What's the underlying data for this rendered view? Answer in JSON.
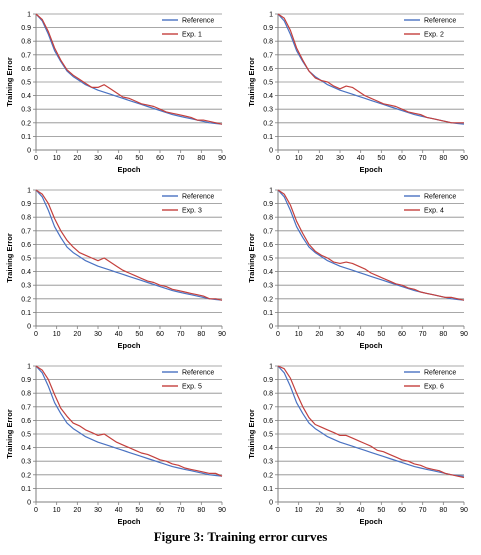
{
  "caption": "Figure 3: Training error curves",
  "colors": {
    "reference": "#4a72c2",
    "experiment": "#c4403d",
    "grid": "#8c8c8c",
    "axis": "#7f7f7f"
  },
  "chart_data": [
    {
      "type": "line",
      "panel": "top-left",
      "xlabel": "Epoch",
      "ylabel": "Training Error",
      "xlim": [
        0,
        90
      ],
      "ylim": [
        0,
        1
      ],
      "xticks": [
        0,
        10,
        20,
        30,
        40,
        50,
        60,
        70,
        80,
        90
      ],
      "yticks": [
        0,
        0.1,
        0.2,
        0.3,
        0.4,
        0.5,
        0.6,
        0.7,
        0.8,
        0.9,
        1
      ],
      "grid": true,
      "legend": "top-right",
      "x": [
        0,
        3,
        6,
        9,
        12,
        15,
        18,
        21,
        24,
        27,
        30,
        33,
        36,
        39,
        42,
        45,
        48,
        51,
        54,
        57,
        60,
        63,
        66,
        69,
        72,
        75,
        78,
        81,
        84,
        87,
        90
      ],
      "series": [
        {
          "name": "Reference",
          "values": [
            1.0,
            0.95,
            0.85,
            0.73,
            0.65,
            0.58,
            0.54,
            0.51,
            0.48,
            0.46,
            0.44,
            0.425,
            0.41,
            0.395,
            0.38,
            0.365,
            0.35,
            0.335,
            0.32,
            0.305,
            0.29,
            0.275,
            0.26,
            0.25,
            0.24,
            0.23,
            0.22,
            0.21,
            0.2,
            0.195,
            0.19
          ]
        },
        {
          "name": "Exp. 1",
          "values": [
            1.0,
            0.96,
            0.87,
            0.75,
            0.66,
            0.59,
            0.55,
            0.52,
            0.49,
            0.46,
            0.46,
            0.48,
            0.45,
            0.42,
            0.39,
            0.38,
            0.36,
            0.34,
            0.33,
            0.32,
            0.3,
            0.28,
            0.27,
            0.26,
            0.25,
            0.24,
            0.22,
            0.22,
            0.21,
            0.2,
            0.19
          ]
        }
      ]
    },
    {
      "type": "line",
      "panel": "top-right",
      "xlabel": "Epoch",
      "ylabel": "Training Error",
      "xlim": [
        0,
        90
      ],
      "ylim": [
        0,
        1
      ],
      "xticks": [
        0,
        10,
        20,
        30,
        40,
        50,
        60,
        70,
        80,
        90
      ],
      "yticks": [
        0,
        0.1,
        0.2,
        0.3,
        0.4,
        0.5,
        0.6,
        0.7,
        0.8,
        0.9,
        1
      ],
      "grid": true,
      "legend": "top-right",
      "x": [
        0,
        3,
        6,
        9,
        12,
        15,
        18,
        21,
        24,
        27,
        30,
        33,
        36,
        39,
        42,
        45,
        48,
        51,
        54,
        57,
        60,
        63,
        66,
        69,
        72,
        75,
        78,
        81,
        84,
        87,
        90
      ],
      "series": [
        {
          "name": "Reference",
          "values": [
            1.0,
            0.95,
            0.85,
            0.73,
            0.65,
            0.58,
            0.54,
            0.51,
            0.48,
            0.46,
            0.44,
            0.425,
            0.41,
            0.395,
            0.38,
            0.365,
            0.35,
            0.335,
            0.32,
            0.305,
            0.29,
            0.275,
            0.26,
            0.25,
            0.24,
            0.23,
            0.22,
            0.21,
            0.2,
            0.195,
            0.19
          ]
        },
        {
          "name": "Exp. 2",
          "values": [
            1.0,
            0.97,
            0.88,
            0.75,
            0.66,
            0.58,
            0.53,
            0.51,
            0.5,
            0.47,
            0.45,
            0.47,
            0.46,
            0.43,
            0.4,
            0.38,
            0.36,
            0.34,
            0.33,
            0.32,
            0.3,
            0.28,
            0.27,
            0.26,
            0.24,
            0.23,
            0.22,
            0.21,
            0.2,
            0.2,
            0.2
          ]
        }
      ]
    },
    {
      "type": "line",
      "panel": "middle-left",
      "xlabel": "Epoch",
      "ylabel": "Training Error",
      "xlim": [
        0,
        90
      ],
      "ylim": [
        0,
        1
      ],
      "xticks": [
        0,
        10,
        20,
        30,
        40,
        50,
        60,
        70,
        80,
        90
      ],
      "yticks": [
        0,
        0.1,
        0.2,
        0.3,
        0.4,
        0.5,
        0.6,
        0.7,
        0.8,
        0.9,
        1
      ],
      "grid": true,
      "legend": "top-right",
      "x": [
        0,
        3,
        6,
        9,
        12,
        15,
        18,
        21,
        24,
        27,
        30,
        33,
        36,
        39,
        42,
        45,
        48,
        51,
        54,
        57,
        60,
        63,
        66,
        69,
        72,
        75,
        78,
        81,
        84,
        87,
        90
      ],
      "series": [
        {
          "name": "Reference",
          "values": [
            1.0,
            0.95,
            0.85,
            0.73,
            0.65,
            0.58,
            0.54,
            0.51,
            0.48,
            0.46,
            0.44,
            0.425,
            0.41,
            0.395,
            0.38,
            0.365,
            0.35,
            0.335,
            0.32,
            0.305,
            0.29,
            0.275,
            0.26,
            0.25,
            0.24,
            0.23,
            0.22,
            0.21,
            0.2,
            0.195,
            0.19
          ]
        },
        {
          "name": "Exp. 3",
          "values": [
            1.0,
            0.97,
            0.9,
            0.79,
            0.7,
            0.63,
            0.58,
            0.54,
            0.52,
            0.5,
            0.48,
            0.5,
            0.47,
            0.44,
            0.41,
            0.39,
            0.37,
            0.35,
            0.33,
            0.32,
            0.3,
            0.29,
            0.27,
            0.26,
            0.25,
            0.24,
            0.23,
            0.22,
            0.2,
            0.2,
            0.19
          ]
        }
      ]
    },
    {
      "type": "line",
      "panel": "middle-right",
      "xlabel": "Epoch",
      "ylabel": "Training Error",
      "xlim": [
        0,
        90
      ],
      "ylim": [
        0,
        1
      ],
      "xticks": [
        0,
        10,
        20,
        30,
        40,
        50,
        60,
        70,
        80,
        90
      ],
      "yticks": [
        0,
        0.1,
        0.2,
        0.3,
        0.4,
        0.5,
        0.6,
        0.7,
        0.8,
        0.9,
        1
      ],
      "grid": true,
      "legend": "top-right",
      "x": [
        0,
        3,
        6,
        9,
        12,
        15,
        18,
        21,
        24,
        27,
        30,
        33,
        36,
        39,
        42,
        45,
        48,
        51,
        54,
        57,
        60,
        63,
        66,
        69,
        72,
        75,
        78,
        81,
        84,
        87,
        90
      ],
      "series": [
        {
          "name": "Reference",
          "values": [
            1.0,
            0.95,
            0.85,
            0.73,
            0.65,
            0.58,
            0.54,
            0.51,
            0.48,
            0.46,
            0.44,
            0.425,
            0.41,
            0.395,
            0.38,
            0.365,
            0.35,
            0.335,
            0.32,
            0.305,
            0.29,
            0.275,
            0.26,
            0.25,
            0.24,
            0.23,
            0.22,
            0.21,
            0.2,
            0.195,
            0.19
          ]
        },
        {
          "name": "Exp. 4",
          "values": [
            1.0,
            0.97,
            0.89,
            0.77,
            0.68,
            0.6,
            0.55,
            0.52,
            0.5,
            0.47,
            0.46,
            0.47,
            0.46,
            0.44,
            0.42,
            0.39,
            0.37,
            0.35,
            0.33,
            0.31,
            0.3,
            0.28,
            0.27,
            0.25,
            0.24,
            0.23,
            0.22,
            0.21,
            0.21,
            0.2,
            0.19
          ]
        }
      ]
    },
    {
      "type": "line",
      "panel": "bottom-left",
      "xlabel": "Epoch",
      "ylabel": "Training Error",
      "xlim": [
        0,
        90
      ],
      "ylim": [
        0,
        1
      ],
      "xticks": [
        0,
        10,
        20,
        30,
        40,
        50,
        60,
        70,
        80,
        90
      ],
      "yticks": [
        0,
        0.1,
        0.2,
        0.3,
        0.4,
        0.5,
        0.6,
        0.7,
        0.8,
        0.9,
        1
      ],
      "grid": true,
      "legend": "top-right",
      "x": [
        0,
        3,
        6,
        9,
        12,
        15,
        18,
        21,
        24,
        27,
        30,
        33,
        36,
        39,
        42,
        45,
        48,
        51,
        54,
        57,
        60,
        63,
        66,
        69,
        72,
        75,
        78,
        81,
        84,
        87,
        90
      ],
      "series": [
        {
          "name": "Reference",
          "values": [
            1.0,
            0.95,
            0.85,
            0.73,
            0.65,
            0.58,
            0.54,
            0.51,
            0.48,
            0.46,
            0.44,
            0.425,
            0.41,
            0.395,
            0.38,
            0.365,
            0.35,
            0.335,
            0.32,
            0.305,
            0.29,
            0.275,
            0.26,
            0.25,
            0.24,
            0.23,
            0.22,
            0.21,
            0.2,
            0.195,
            0.19
          ]
        },
        {
          "name": "Exp. 5",
          "values": [
            1.0,
            0.97,
            0.9,
            0.79,
            0.69,
            0.63,
            0.58,
            0.56,
            0.53,
            0.51,
            0.49,
            0.5,
            0.47,
            0.44,
            0.42,
            0.4,
            0.38,
            0.36,
            0.35,
            0.33,
            0.31,
            0.3,
            0.28,
            0.27,
            0.25,
            0.24,
            0.23,
            0.22,
            0.21,
            0.21,
            0.19
          ]
        }
      ]
    },
    {
      "type": "line",
      "panel": "bottom-right",
      "xlabel": "Epoch",
      "ylabel": "Training Error",
      "xlim": [
        0,
        90
      ],
      "ylim": [
        0,
        1
      ],
      "xticks": [
        0,
        10,
        20,
        30,
        40,
        50,
        60,
        70,
        80,
        90
      ],
      "yticks": [
        0,
        0.1,
        0.2,
        0.3,
        0.4,
        0.5,
        0.6,
        0.7,
        0.8,
        0.9,
        1
      ],
      "grid": true,
      "legend": "top-right",
      "x": [
        0,
        3,
        6,
        9,
        12,
        15,
        18,
        21,
        24,
        27,
        30,
        33,
        36,
        39,
        42,
        45,
        48,
        51,
        54,
        57,
        60,
        63,
        66,
        69,
        72,
        75,
        78,
        81,
        84,
        87,
        90
      ],
      "series": [
        {
          "name": "Reference",
          "values": [
            1.0,
            0.95,
            0.85,
            0.73,
            0.65,
            0.58,
            0.54,
            0.51,
            0.48,
            0.46,
            0.44,
            0.425,
            0.41,
            0.395,
            0.38,
            0.365,
            0.35,
            0.335,
            0.32,
            0.305,
            0.29,
            0.275,
            0.26,
            0.25,
            0.24,
            0.23,
            0.22,
            0.21,
            0.2,
            0.195,
            0.19
          ]
        },
        {
          "name": "Exp. 6",
          "values": [
            1.0,
            0.98,
            0.91,
            0.8,
            0.7,
            0.62,
            0.57,
            0.55,
            0.53,
            0.51,
            0.49,
            0.49,
            0.47,
            0.45,
            0.43,
            0.41,
            0.38,
            0.37,
            0.35,
            0.33,
            0.31,
            0.3,
            0.28,
            0.27,
            0.25,
            0.24,
            0.23,
            0.21,
            0.2,
            0.19,
            0.18
          ]
        }
      ]
    }
  ]
}
